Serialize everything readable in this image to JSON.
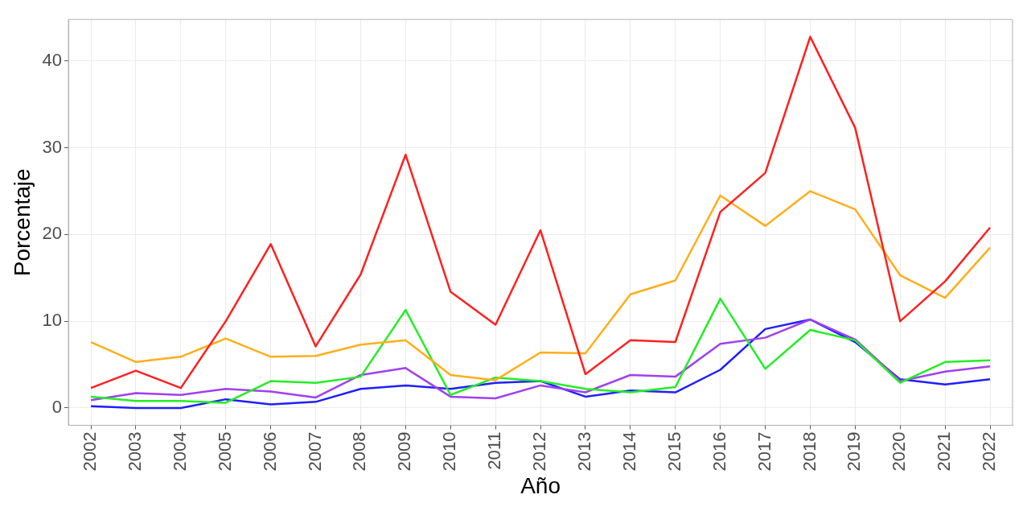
{
  "chart_data": {
    "type": "line",
    "xlabel": "Año",
    "ylabel": "Porcentaje",
    "categories": [
      "2002",
      "2003",
      "2004",
      "2005",
      "2006",
      "2007",
      "2008",
      "2009",
      "2010",
      "2011",
      "2012",
      "2013",
      "2014",
      "2015",
      "2016",
      "2017",
      "2018",
      "2019",
      "2020",
      "2021",
      "2022"
    ],
    "series": [
      {
        "color": "#ff2020",
        "values": [
          2.3,
          4.3,
          2.3,
          10.0,
          18.9,
          7.1,
          15.4,
          29.2,
          13.4,
          9.6,
          20.5,
          3.9,
          7.8,
          7.6,
          22.6,
          27.1,
          42.8,
          32.3,
          10.0,
          14.6,
          20.8
        ]
      },
      {
        "color": "#ffae1a",
        "values": [
          7.6,
          5.3,
          5.9,
          8.0,
          5.9,
          6.0,
          7.3,
          7.8,
          3.8,
          3.2,
          6.4,
          6.3,
          13.1,
          14.7,
          24.5,
          21.0,
          25.0,
          22.9,
          15.3,
          12.7,
          18.5
        ]
      },
      {
        "color": "#22ee22",
        "values": [
          1.3,
          0.8,
          0.8,
          0.6,
          3.1,
          2.9,
          3.6,
          11.3,
          1.5,
          3.5,
          3.1,
          2.2,
          1.8,
          2.4,
          12.6,
          4.5,
          9.0,
          7.8,
          2.9,
          5.3,
          5.5
        ]
      },
      {
        "color": "#a040f0",
        "values": [
          0.9,
          1.7,
          1.5,
          2.2,
          1.9,
          1.2,
          3.8,
          4.6,
          1.3,
          1.1,
          2.6,
          1.8,
          3.8,
          3.6,
          7.4,
          8.1,
          10.2,
          7.9,
          3.1,
          4.2,
          4.8
        ]
      },
      {
        "color": "#1f1fff",
        "values": [
          0.2,
          0.0,
          0.0,
          1.0,
          0.4,
          0.7,
          2.2,
          2.6,
          2.2,
          2.9,
          3.1,
          1.3,
          2.0,
          1.8,
          4.4,
          9.1,
          10.2,
          7.6,
          3.3,
          2.7,
          3.3
        ]
      }
    ],
    "ylim": [
      -2.0,
      44.8
    ],
    "yticks": [
      0,
      10,
      20,
      30,
      40
    ],
    "grid": true,
    "legend": false,
    "marker": "none",
    "line_style": "solid"
  }
}
